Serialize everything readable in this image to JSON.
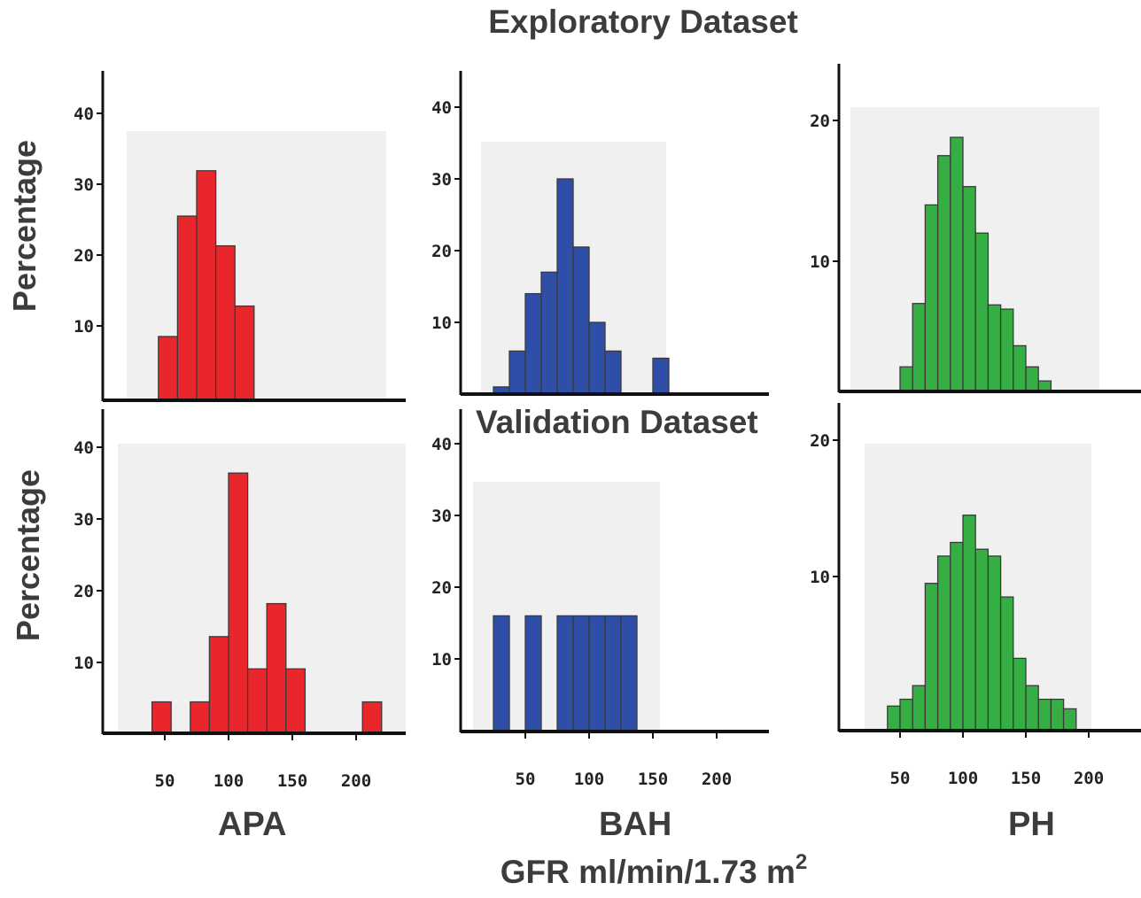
{
  "titles": {
    "top": "Exploratory Dataset",
    "middle": "Validation Dataset",
    "x_axis": "GFR ml/min/1.73 m",
    "x_axis_superscript": "2",
    "y_axis": "Percentage"
  },
  "groups": [
    "APA",
    "BAH",
    "PH"
  ],
  "colors": {
    "APA": "#e8262b",
    "BAH": "#2e4ea8",
    "PH": "#35ae44",
    "panel_bg": "#f0f0f0"
  },
  "chart_data": [
    {
      "type": "bar",
      "dataset": "Exploratory Dataset",
      "group": "APA",
      "bin_edges": [
        45,
        60,
        75,
        90,
        105,
        120
      ],
      "values": [
        8.5,
        25.5,
        31.9,
        21.3,
        12.8
      ],
      "ylim": [
        0,
        45
      ],
      "yticks": [
        10,
        20,
        30,
        40
      ],
      "xlim": [
        5,
        240
      ]
    },
    {
      "type": "bar",
      "dataset": "Exploratory Dataset",
      "group": "BAH",
      "bin_edges": [
        25,
        37.5,
        50,
        62.5,
        75,
        87.5,
        100,
        112.5,
        125,
        137.5,
        150,
        162.5
      ],
      "values": [
        1,
        6,
        14,
        17,
        30,
        20.5,
        10,
        6,
        0,
        0,
        5
      ],
      "ylim": [
        0,
        45
      ],
      "yticks": [
        10,
        20,
        30,
        40
      ],
      "xlim": [
        5,
        240
      ]
    },
    {
      "type": "bar",
      "dataset": "Exploratory Dataset",
      "group": "PH",
      "bin_edges": [
        30,
        40,
        50,
        60,
        70,
        80,
        90,
        100,
        110,
        120,
        130,
        140,
        150,
        160,
        170,
        180,
        190,
        200
      ],
      "values": [
        0.3,
        0.5,
        2.5,
        7,
        14,
        17.5,
        18.8,
        15.3,
        12,
        6.9,
        6.6,
        4,
        2.5,
        1.5,
        0.6,
        0.3,
        0.5
      ],
      "ylim": [
        0,
        24
      ],
      "yticks": [
        10,
        20
      ],
      "xlim": [
        5,
        240
      ]
    },
    {
      "type": "bar",
      "dataset": "Validation Dataset",
      "group": "APA",
      "bin_edges": [
        40,
        55,
        70,
        85,
        100,
        115,
        130,
        145,
        160,
        175,
        190,
        205,
        220
      ],
      "values": [
        4.5,
        0,
        4.5,
        13.6,
        36.4,
        9.1,
        18.2,
        9.1,
        0,
        0,
        0,
        4.5
      ],
      "ylim": [
        0,
        45
      ],
      "yticks": [
        10,
        20,
        30,
        40
      ],
      "xlim": [
        5,
        240
      ]
    },
    {
      "type": "bar",
      "dataset": "Validation Dataset",
      "group": "BAH",
      "bin_edges": [
        25,
        37.5,
        50,
        62.5,
        75,
        87.5,
        100,
        112.5,
        125,
        137.5
      ],
      "values": [
        16,
        0,
        16,
        0,
        16,
        16,
        16,
        16,
        16
      ],
      "ylim": [
        0,
        45
      ],
      "yticks": [
        10,
        20,
        30,
        40
      ],
      "xlim": [
        5,
        240
      ]
    },
    {
      "type": "bar",
      "dataset": "Validation Dataset",
      "group": "PH",
      "bin_edges": [
        40,
        50,
        60,
        70,
        80,
        90,
        100,
        110,
        120,
        130,
        140,
        150,
        160,
        170,
        180,
        190
      ],
      "values": [
        0.5,
        1,
        2,
        9.5,
        11.5,
        12.5,
        14.5,
        12,
        11.5,
        8.5,
        4,
        2,
        1,
        1,
        0.3
      ],
      "ylim": [
        0,
        22
      ],
      "yticks": [
        10,
        20
      ],
      "xlim": [
        5,
        240
      ]
    }
  ],
  "xticks": [
    50,
    100,
    150,
    200
  ]
}
